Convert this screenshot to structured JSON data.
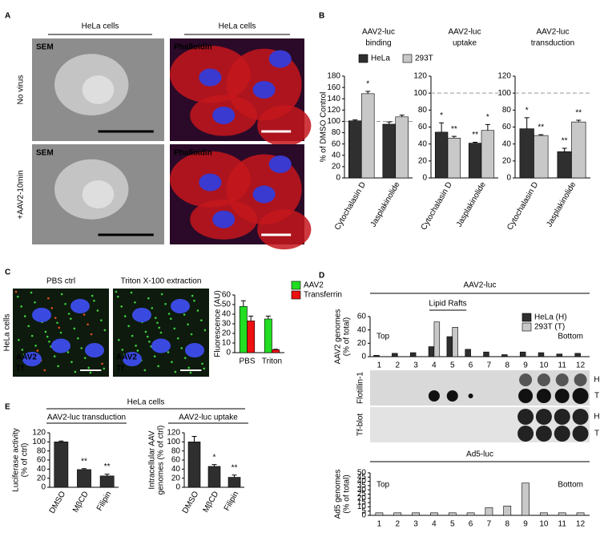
{
  "panel_labels": [
    "A",
    "B",
    "C",
    "D",
    "E"
  ],
  "panel_a": {
    "column_headers": [
      "HeLa cells",
      "HeLa cells"
    ],
    "row_labels": [
      "No virus",
      "+AAV2-10min"
    ],
    "image_labels": [
      "SEM",
      "Phalloidin",
      "SEM",
      "Phalloidin"
    ]
  },
  "panel_c": {
    "row_label": "HeLa cells",
    "column_headers": [
      "PBS ctrl",
      "Triton X-100 extraction"
    ],
    "stain_labels": [
      "AAV2",
      "Tf",
      "AAV2",
      "Tf"
    ]
  },
  "panel_d": {
    "blot_labels": [
      "Flotillin-1",
      "Tf-blot"
    ],
    "lane_labels": [
      "H",
      "T",
      "H",
      "T"
    ]
  },
  "panel_e": {
    "header": "HeLa cells"
  },
  "chart_data": [
    {
      "type": "bar",
      "title": [
        "AAV2-luc",
        "binding"
      ],
      "ylabel": "% of DMSO Control",
      "categories": [
        "Cytochalasin D",
        "Jasplakinolide"
      ],
      "series": [
        {
          "name": "HeLa",
          "color": "#2f2f2f",
          "values": [
            101,
            95
          ],
          "errors": [
            1.5,
            4
          ],
          "significance": [
            null,
            null
          ]
        },
        {
          "name": "293T",
          "color": "#c8c8c8",
          "values": [
            149,
            108
          ],
          "errors": [
            4,
            3
          ],
          "significance": [
            "*",
            null
          ]
        }
      ],
      "ylim": [
        0,
        180
      ],
      "yticks": [
        0,
        20,
        40,
        60,
        80,
        100,
        120,
        140,
        160,
        180
      ],
      "reference_line": 100,
      "legend": true
    },
    {
      "type": "bar",
      "title": [
        "AAV2-luc",
        "uptake"
      ],
      "categories": [
        "Cytochalasin D",
        "Jasplakinolide"
      ],
      "series": [
        {
          "color": "#2f2f2f",
          "values": [
            54,
            41
          ],
          "errors": [
            11,
            1
          ],
          "significance": [
            "*",
            "**"
          ]
        },
        {
          "color": "#c8c8c8",
          "values": [
            47,
            56
          ],
          "errors": [
            2,
            7
          ],
          "significance": [
            "**",
            "*"
          ]
        }
      ],
      "ylim": [
        0,
        120
      ],
      "yticks": [
        0,
        20,
        40,
        60,
        80,
        100,
        120
      ],
      "reference_line": 100,
      "legend": false
    },
    {
      "type": "bar",
      "title": [
        "AAV2-luc",
        "transduction"
      ],
      "categories": [
        "Cytochalasin D",
        "Jasplakinolide"
      ],
      "series": [
        {
          "color": "#2f2f2f",
          "values": [
            58,
            31
          ],
          "errors": [
            13,
            4
          ],
          "significance": [
            "*",
            "**"
          ]
        },
        {
          "color": "#c8c8c8",
          "values": [
            50,
            66
          ],
          "errors": [
            1,
            2
          ],
          "significance": [
            "**",
            "**"
          ]
        }
      ],
      "ylim": [
        0,
        120
      ],
      "yticks": [
        0,
        20,
        40,
        60,
        80,
        100,
        120
      ],
      "reference_line": 100,
      "legend": false
    },
    {
      "type": "bar",
      "ylabel": "Fluorescence (AU)",
      "categories": [
        "PBS",
        "Triton"
      ],
      "series": [
        {
          "name": "AAV2",
          "color": "#22dd22",
          "values": [
            48,
            35
          ],
          "errors": [
            6,
            3
          ]
        },
        {
          "name": "Transferrin",
          "color": "#ee1111",
          "values": [
            33,
            3
          ],
          "errors": [
            5,
            0.5
          ]
        }
      ],
      "ylim": [
        0,
        60
      ],
      "yticks": [
        0,
        10,
        20,
        30,
        40,
        50,
        60
      ],
      "legend": true
    },
    {
      "type": "bar",
      "title": "AAV2-luc",
      "ylabel": [
        "AAV2 genomes",
        "(% of total)"
      ],
      "categories": [
        "1",
        "2",
        "3",
        "4",
        "5",
        "6",
        "7",
        "8",
        "9",
        "10",
        "11",
        "12"
      ],
      "series": [
        {
          "name": "HeLa (H)",
          "color": "#2f2f2f",
          "values": [
            2,
            5,
            6,
            15,
            30,
            11,
            7,
            3,
            7,
            6,
            4,
            5
          ]
        },
        {
          "name": "293T (T)",
          "color": "#c8c8c8",
          "values": [
            0,
            0,
            0,
            52,
            44,
            0,
            0,
            0,
            0,
            0,
            0,
            0
          ]
        }
      ],
      "ylim": [
        0,
        60
      ],
      "yticks": [
        0,
        20,
        40,
        60
      ],
      "annotations": [
        "Top",
        "Bottom",
        "Lipid Rafts"
      ],
      "legend": true
    },
    {
      "type": "bar",
      "title": "Ad5-luc",
      "ylabel": [
        "Ad5 genomes",
        "(% of total)"
      ],
      "categories": [
        "1",
        "2",
        "3",
        "4",
        "5",
        "6",
        "7",
        "8",
        "9",
        "10",
        "11",
        "12"
      ],
      "series": [
        {
          "color": "#c8c8c8",
          "values": [
            3,
            3,
            3,
            3,
            3,
            3,
            9,
            11,
            38,
            3,
            3,
            3
          ]
        }
      ],
      "ylim": [
        0,
        50
      ],
      "yticks": [
        0,
        5,
        10,
        15,
        20,
        25,
        30,
        35,
        40,
        45,
        50
      ],
      "annotations": [
        "Top",
        "Bottom"
      ],
      "legend": false
    },
    {
      "type": "bar",
      "title": "AAV2-luc transduction",
      "ylabel": [
        "Luciferase activity",
        "(% of ctrl)"
      ],
      "categories": [
        "DMSO",
        "MβCD",
        "Filipin"
      ],
      "series": [
        {
          "color": "#2f2f2f",
          "values": [
            100,
            39,
            25
          ],
          "errors": [
            2,
            2,
            4
          ],
          "significance": [
            null,
            "**",
            "**"
          ]
        }
      ],
      "ylim": [
        0,
        120
      ],
      "yticks": [
        0,
        20,
        40,
        60,
        80,
        100,
        120
      ],
      "legend": false
    },
    {
      "type": "bar",
      "title": "AAV2-luc uptake",
      "ylabel": [
        "Intracellular AAV",
        "genomes (% of ctrl)"
      ],
      "categories": [
        "DMSO",
        "MβCD",
        "Filipin"
      ],
      "series": [
        {
          "color": "#2f2f2f",
          "values": [
            100,
            46,
            22
          ],
          "errors": [
            12,
            4,
            5
          ],
          "significance": [
            null,
            "*",
            "**"
          ]
        }
      ],
      "ylim": [
        0,
        120
      ],
      "yticks": [
        0,
        20,
        40,
        60,
        80,
        100,
        120
      ],
      "legend": false
    }
  ]
}
